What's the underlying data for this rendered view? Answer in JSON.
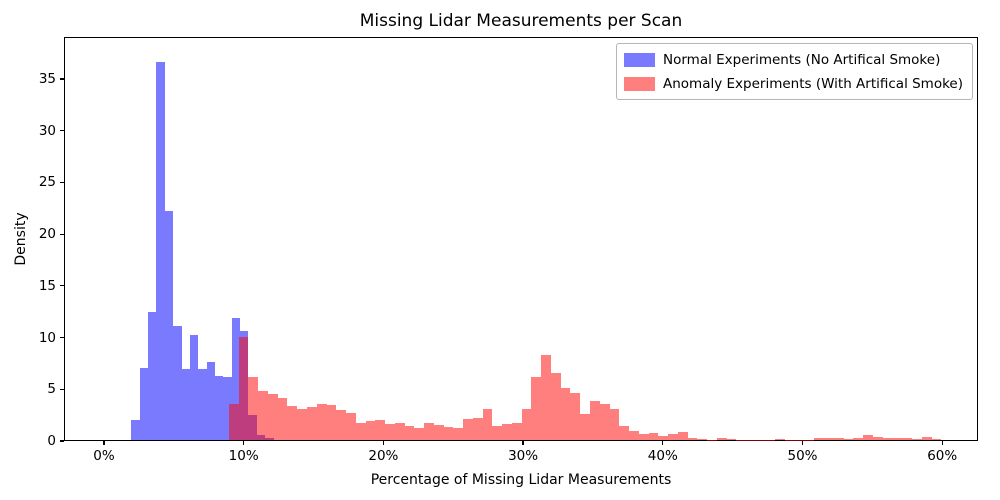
{
  "title": "Missing Lidar Measurements per Scan",
  "xlabel": "Percentage of Missing Lidar Measurements",
  "ylabel": "Density",
  "legend": {
    "position": "upper right",
    "items": [
      {
        "label": "Normal Experiments (No Artifical Smoke)",
        "color": "rgba(0,0,255,0.52)",
        "base_hex": "#0000ff"
      },
      {
        "label": "Anomaly Experiments (With Artifical Smoke)",
        "color": "rgba(255,0,0,0.5)",
        "base_hex": "#ff0000"
      }
    ]
  },
  "axes": {
    "xlim": [
      -2.86,
      62.56
    ],
    "ylim": [
      0,
      39.06
    ],
    "grid": false,
    "x_ticks": [
      {
        "value": 0,
        "label": "0%"
      },
      {
        "value": 10,
        "label": "10%"
      },
      {
        "value": 20,
        "label": "20%"
      },
      {
        "value": 30,
        "label": "30%"
      },
      {
        "value": 40,
        "label": "40%"
      },
      {
        "value": 50,
        "label": "50%"
      },
      {
        "value": 60,
        "label": "60%"
      }
    ],
    "y_ticks": [
      {
        "value": 0,
        "label": "0"
      },
      {
        "value": 5,
        "label": "5"
      },
      {
        "value": 10,
        "label": "10"
      },
      {
        "value": 15,
        "label": "15"
      },
      {
        "value": 20,
        "label": "20"
      },
      {
        "value": 25,
        "label": "25"
      },
      {
        "value": 30,
        "label": "30"
      },
      {
        "value": 35,
        "label": "35"
      }
    ]
  },
  "chart_data": {
    "type": "bar",
    "subtype": "overlapping-density-histogram",
    "title": "Missing Lidar Measurements per Scan",
    "xlabel": "Percentage of Missing Lidar Measurements",
    "ylabel": "Density",
    "x_unit": "percent",
    "series": [
      {
        "name": "Normal Experiments (No Artifical Smoke)",
        "color": "rgba(0,0,255,0.52)",
        "bin_start": 1.9,
        "bin_width": 0.6,
        "densities": [
          1.9,
          7.0,
          12.4,
          36.7,
          22.3,
          11.1,
          6.9,
          10.2,
          6.9,
          7.6,
          6.2,
          6.1,
          11.9,
          10.6,
          2.4,
          0.5,
          0.2
        ]
      },
      {
        "name": "Anomaly Experiments (With Artifical Smoke)",
        "color": "rgba(255,0,0,0.5)",
        "bin_start": 8.9,
        "bin_width": 0.7,
        "densities": [
          3.5,
          10.0,
          6.1,
          4.8,
          4.5,
          4.1,
          3.3,
          3.0,
          3.2,
          3.5,
          3.4,
          2.9,
          2.6,
          1.7,
          1.8,
          1.9,
          1.55,
          1.7,
          1.4,
          1.2,
          1.7,
          1.5,
          1.3,
          1.2,
          2.0,
          2.1,
          3.0,
          1.4,
          1.55,
          1.7,
          3.0,
          6.1,
          8.3,
          6.5,
          5.1,
          4.6,
          2.5,
          3.8,
          3.5,
          3.0,
          1.4,
          0.9,
          0.6,
          0.7,
          0.35,
          0.6,
          0.75,
          0.2,
          0.1,
          0.05,
          0.15,
          0.1,
          0.05,
          0.02,
          0.02,
          0.05,
          0.12,
          0.05,
          0.02,
          0.05,
          0.15,
          0.2,
          0.2,
          0.1,
          0.15,
          0.45,
          0.25,
          0.15,
          0.15,
          0.2,
          0.1,
          0.25,
          0.1
        ]
      }
    ]
  }
}
